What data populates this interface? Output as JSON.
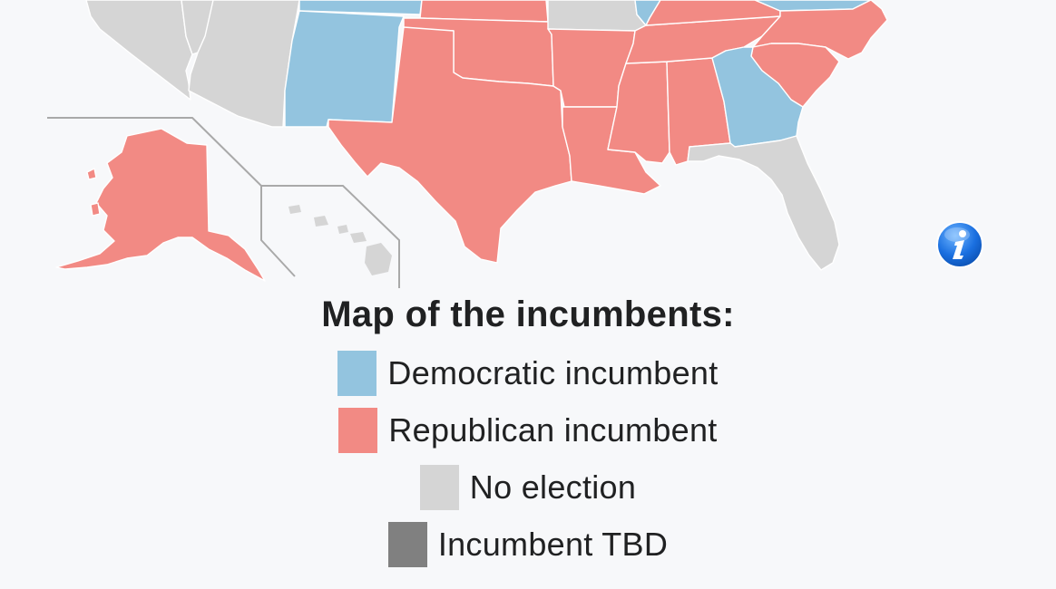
{
  "map": {
    "colors": {
      "democratic": "#93c4df",
      "republican": "#f28a84",
      "no_election": "#d5d5d5",
      "tbd": "#808080",
      "inset_border": "#a9a9a9"
    },
    "info_icon": "info-icon"
  },
  "legend": {
    "title": "Map of the incumbents:",
    "items": [
      {
        "label": "Democratic incumbent",
        "color": "#93c4df"
      },
      {
        "label": "Republican incumbent",
        "color": "#f28a84"
      },
      {
        "label": "No election",
        "color": "#d5d5d5"
      },
      {
        "label": "Incumbent TBD",
        "color": "#808080"
      }
    ]
  }
}
